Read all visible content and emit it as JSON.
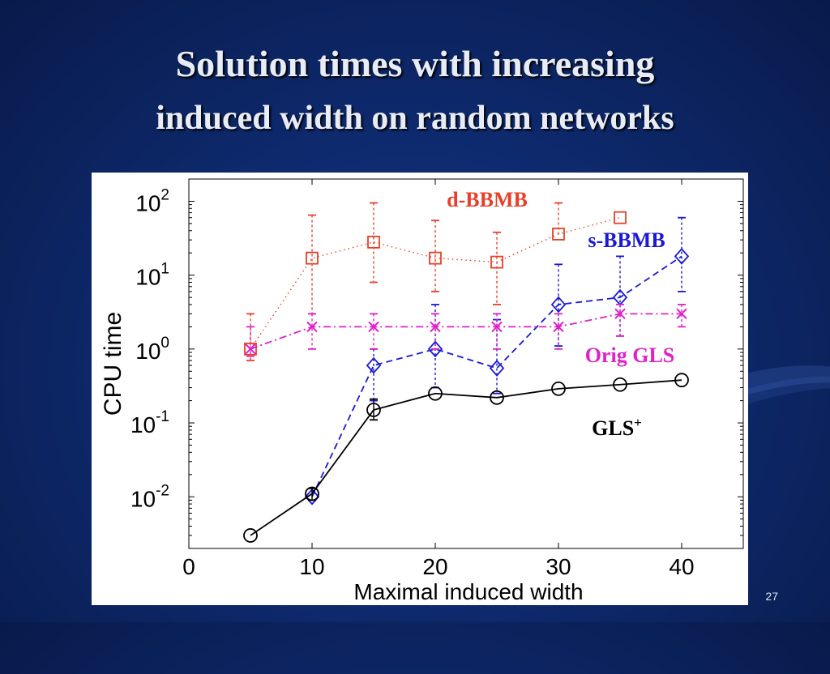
{
  "slide": {
    "title_line1": "Solution times with increasing",
    "title_line2": "induced width on random networks",
    "page_number": "27"
  },
  "colors": {
    "background": "#0e2a6e",
    "title_text": "#e8ecf6",
    "d_bbmb": "#e8402a",
    "s_bbmb": "#1a1ad6",
    "orig_gls": "#e020c8",
    "gls_plus": "#000000"
  },
  "chart_data": {
    "type": "line",
    "xlabel": "Maximal induced width",
    "ylabel": "CPU time",
    "xlim": [
      0,
      45
    ],
    "xticks": [
      "0",
      "10",
      "20",
      "30",
      "40"
    ],
    "ylim": [
      0.002,
      200
    ],
    "yscale": "log",
    "yticks": [
      {
        "base": "10",
        "exp": "2"
      },
      {
        "base": "10",
        "exp": "1"
      },
      {
        "base": "10",
        "exp": "0"
      },
      {
        "base": "10",
        "exp": "-1"
      },
      {
        "base": "10",
        "exp": "-2"
      }
    ],
    "grid": false,
    "series": [
      {
        "name": "d-BBMB",
        "color": "#e8402a",
        "marker": "square",
        "linestyle": "dotted",
        "x": [
          5,
          10,
          15,
          20,
          25,
          30,
          35
        ],
        "y": [
          1.0,
          17,
          28,
          17,
          15,
          36,
          60
        ],
        "err_lo": [
          0.7,
          3,
          8,
          6,
          4,
          null,
          null
        ],
        "err_hi": [
          3,
          65,
          95,
          55,
          38,
          95,
          null
        ]
      },
      {
        "name": "s-BBMB",
        "color": "#1a1ad6",
        "marker": "diamond",
        "linestyle": "dashed",
        "x": [
          10,
          15,
          20,
          25,
          30,
          35,
          40
        ],
        "y": [
          0.01,
          0.6,
          1.0,
          0.55,
          4,
          5,
          18
        ],
        "err_lo": [
          null,
          0.2,
          0.3,
          0.25,
          1.1,
          1.5,
          6
        ],
        "err_hi": [
          null,
          1.0,
          4,
          2.5,
          14,
          18,
          60
        ]
      },
      {
        "name": "Orig GLS",
        "color": "#e020c8",
        "marker": "x",
        "linestyle": "dashdot",
        "x": [
          5,
          10,
          15,
          20,
          25,
          30,
          35,
          40
        ],
        "y": [
          1.0,
          2.0,
          2.0,
          2.0,
          2.0,
          2.0,
          3.0,
          3.0
        ],
        "err_lo": [
          0.8,
          1.0,
          1.0,
          1.0,
          1.0,
          1.0,
          1.5,
          2.0
        ],
        "err_hi": [
          2.0,
          3.0,
          3.0,
          3.0,
          3.0,
          3.0,
          4.0,
          4.0
        ]
      },
      {
        "name": "GLS",
        "name_superscript": "+",
        "color": "#000000",
        "marker": "circle",
        "linestyle": "solid",
        "x": [
          5,
          10,
          15,
          20,
          25,
          30,
          35,
          40
        ],
        "y": [
          0.003,
          0.011,
          0.15,
          0.25,
          0.22,
          0.29,
          0.33,
          0.38
        ],
        "err_lo": [
          null,
          0.009,
          0.11,
          null,
          null,
          null,
          null,
          null
        ],
        "err_hi": [
          null,
          0.013,
          0.21,
          null,
          null,
          null,
          null,
          null
        ]
      }
    ]
  }
}
